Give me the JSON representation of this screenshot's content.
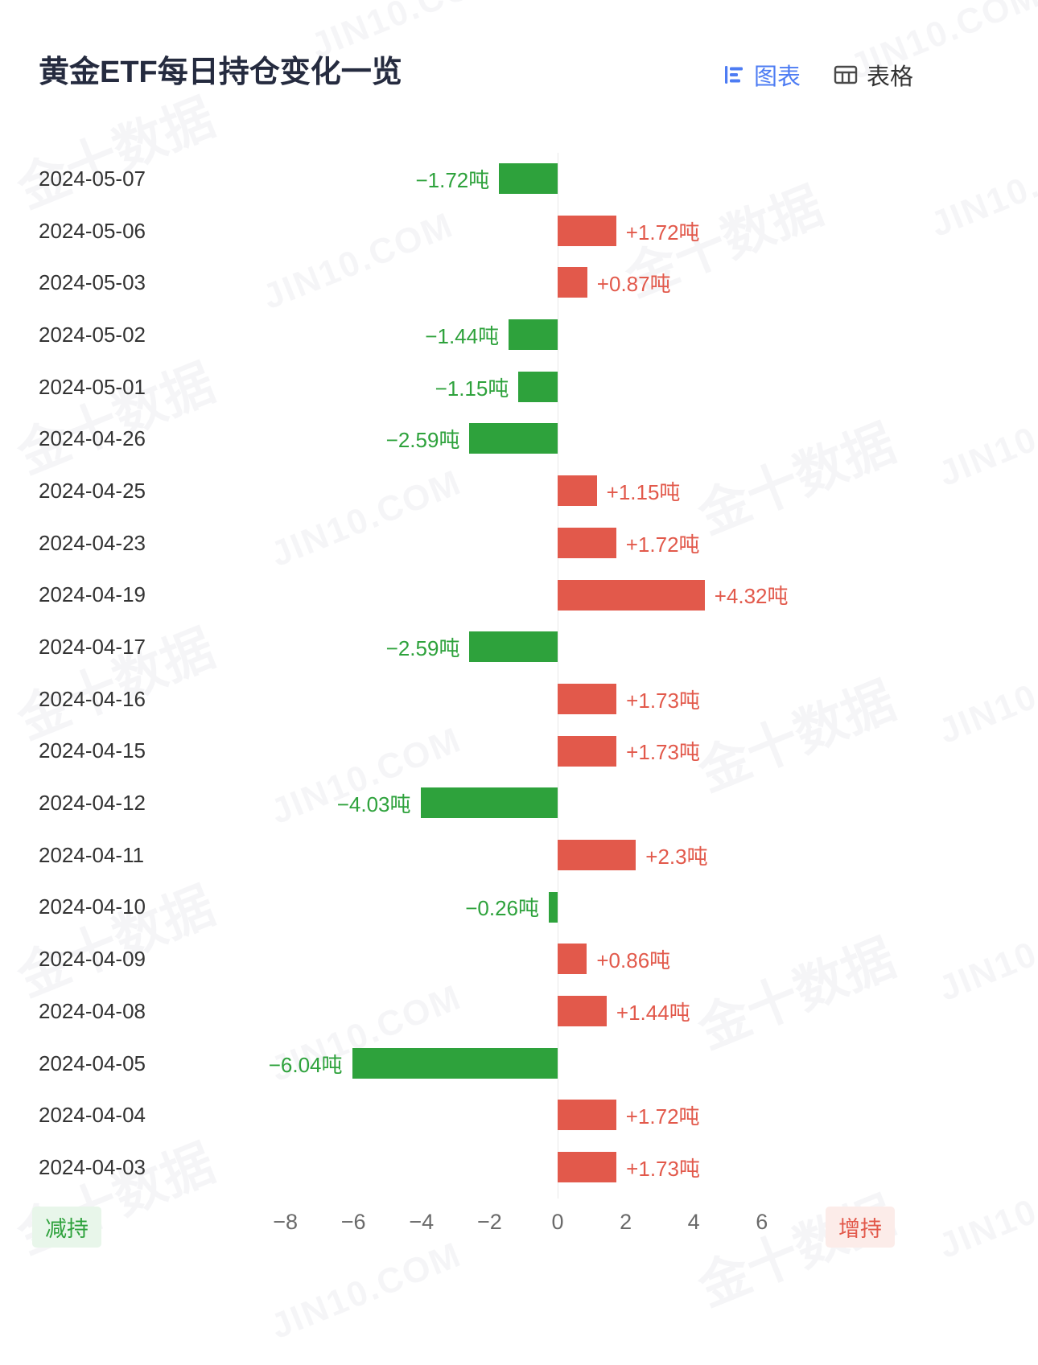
{
  "header": {
    "title": "黄金ETF每日持仓变化一览",
    "view_toggle": {
      "chart_label": "图表",
      "table_label": "表格"
    }
  },
  "chart_data": {
    "type": "bar",
    "orientation": "horizontal",
    "unit": "吨",
    "categories": [
      "2024-05-07",
      "2024-05-06",
      "2024-05-03",
      "2024-05-02",
      "2024-05-01",
      "2024-04-26",
      "2024-04-25",
      "2024-04-23",
      "2024-04-19",
      "2024-04-17",
      "2024-04-16",
      "2024-04-15",
      "2024-04-12",
      "2024-04-11",
      "2024-04-10",
      "2024-04-09",
      "2024-04-08",
      "2024-04-05",
      "2024-04-04",
      "2024-04-03"
    ],
    "values": [
      -1.72,
      1.72,
      0.87,
      -1.44,
      -1.15,
      -2.59,
      1.15,
      1.72,
      4.32,
      -2.59,
      1.73,
      1.73,
      -4.03,
      2.3,
      -0.26,
      0.86,
      1.44,
      -6.04,
      1.72,
      1.73
    ],
    "labels": [
      "−1.72吨",
      "+1.72吨",
      "+0.87吨",
      "−1.44吨",
      "−1.15吨",
      "−2.59吨",
      "+1.15吨",
      "+1.72吨",
      "+4.32吨",
      "−2.59吨",
      "+1.73吨",
      "+1.73吨",
      "−4.03吨",
      "+2.3吨",
      "−0.26吨",
      "+0.86吨",
      "+1.44吨",
      "−6.04吨",
      "+1.72吨",
      "+1.73吨"
    ],
    "axis_ticks": [
      {
        "label": "−8",
        "value": -8
      },
      {
        "label": "−6",
        "value": -6
      },
      {
        "label": "−4",
        "value": -4
      },
      {
        "label": "−2",
        "value": -2
      },
      {
        "label": "0",
        "value": 0
      },
      {
        "label": "2",
        "value": 2
      },
      {
        "label": "4",
        "value": 4
      },
      {
        "label": "6",
        "value": 6
      }
    ],
    "xlim": [
      -9,
      8
    ],
    "grid": false,
    "colors": {
      "positive": "#E2594B",
      "negative": "#2EA23C"
    },
    "legend": {
      "negative_label": "减持",
      "positive_label": "增持"
    }
  },
  "watermark": {
    "cn": "金十数据",
    "en": "JIN10.COM"
  }
}
